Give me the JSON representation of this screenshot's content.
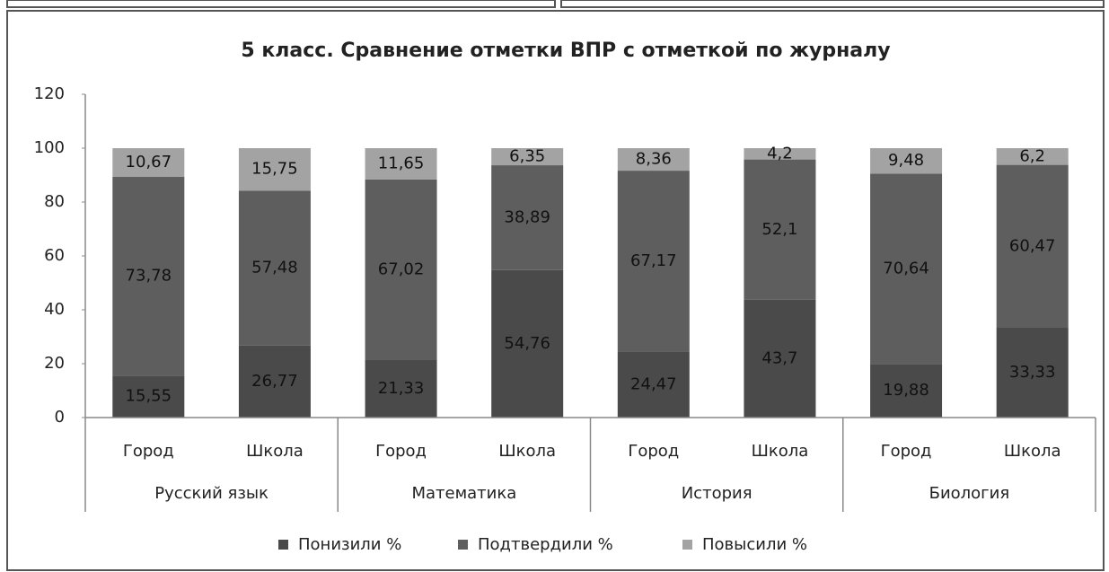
{
  "chart_data": {
    "type": "stacked_bar",
    "title": "5 класс. Сравнение отметки ВПР с отметкой по журналу",
    "categories": [
      "Город",
      "Школа",
      "Город",
      "Школа",
      "Город",
      "Школа",
      "Город",
      "Школа"
    ],
    "groups": [
      "Русский язык",
      "Математика",
      "История",
      "Биология"
    ],
    "series": [
      {
        "name": "Понизили %",
        "color": "#4a4a4a",
        "values": [
          15.55,
          26.77,
          21.33,
          54.76,
          24.47,
          43.7,
          19.88,
          33.33
        ],
        "value_labels": [
          "15,55",
          "26,77",
          "21,33",
          "54,76",
          "24,47",
          "43,7",
          "19,88",
          "33,33"
        ]
      },
      {
        "name": "Подтвердили %",
        "color": "#5e5e5e",
        "values": [
          73.78,
          57.48,
          67.02,
          38.89,
          67.17,
          52.1,
          70.64,
          60.47
        ],
        "value_labels": [
          "73,78",
          "57,48",
          "67,02",
          "38,89",
          "67,17",
          "52,1",
          "70,64",
          "60,47"
        ]
      },
      {
        "name": "Повысили %",
        "color": "#a3a3a3",
        "values": [
          10.67,
          15.75,
          11.65,
          6.35,
          8.36,
          4.2,
          9.48,
          6.2
        ],
        "value_labels": [
          "10,67",
          "15,75",
          "11,65",
          "6,35",
          "8,36",
          "4,2",
          "9,48",
          "6,2"
        ]
      }
    ],
    "ylim": [
      0,
      120
    ],
    "yticks": [
      0,
      20,
      40,
      60,
      80,
      100,
      120
    ],
    "grid": false
  }
}
